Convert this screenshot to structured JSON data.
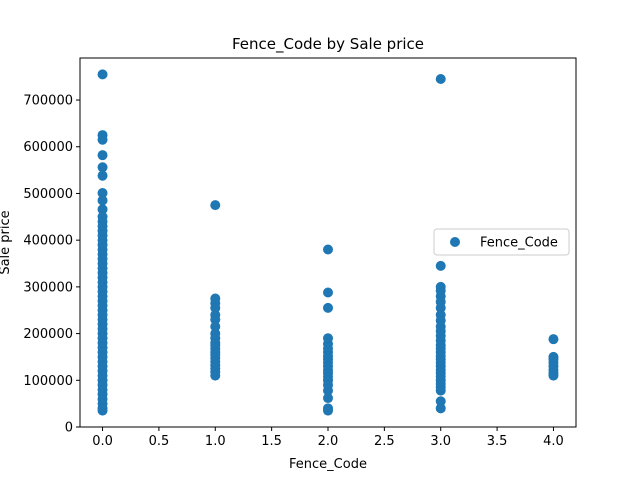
{
  "chart_data": {
    "type": "scatter",
    "title": "Fence_Code by Sale price",
    "xlabel": "Fence_Code",
    "ylabel": "Sale price",
    "xlim": [
      -0.2,
      4.2
    ],
    "ylim": [
      0,
      790000
    ],
    "x_ticks": [
      0.0,
      0.5,
      1.0,
      1.5,
      2.0,
      2.5,
      3.0,
      3.5,
      4.0
    ],
    "x_tick_labels": [
      "0.0",
      "0.5",
      "1.0",
      "1.5",
      "2.0",
      "2.5",
      "3.0",
      "3.5",
      "4.0"
    ],
    "y_ticks": [
      0,
      100000,
      200000,
      300000,
      400000,
      500000,
      600000,
      700000
    ],
    "y_tick_labels": [
      "0",
      "100000",
      "200000",
      "300000",
      "400000",
      "500000",
      "600000",
      "700000"
    ],
    "grid": false,
    "legend_position": "center-right",
    "series": [
      {
        "name": "Fence_Code",
        "color": "#1f77b4",
        "marker": "circle",
        "points": [
          [
            0,
            755000
          ],
          [
            0,
            625000
          ],
          [
            0,
            615000
          ],
          [
            0,
            582000
          ],
          [
            0,
            556000
          ],
          [
            0,
            538000
          ],
          [
            0,
            501000
          ],
          [
            0,
            485000
          ],
          [
            0,
            466000
          ],
          [
            0,
            450000
          ],
          [
            0,
            440000
          ],
          [
            0,
            430000
          ],
          [
            0,
            420000
          ],
          [
            0,
            410000
          ],
          [
            0,
            400000
          ],
          [
            0,
            390000
          ],
          [
            0,
            380000
          ],
          [
            0,
            370000
          ],
          [
            0,
            360000
          ],
          [
            0,
            350000
          ],
          [
            0,
            340000
          ],
          [
            0,
            330000
          ],
          [
            0,
            320000
          ],
          [
            0,
            310000
          ],
          [
            0,
            300000
          ],
          [
            0,
            290000
          ],
          [
            0,
            280000
          ],
          [
            0,
            270000
          ],
          [
            0,
            260000
          ],
          [
            0,
            250000
          ],
          [
            0,
            240000
          ],
          [
            0,
            230000
          ],
          [
            0,
            220000
          ],
          [
            0,
            210000
          ],
          [
            0,
            200000
          ],
          [
            0,
            190000
          ],
          [
            0,
            180000
          ],
          [
            0,
            170000
          ],
          [
            0,
            160000
          ],
          [
            0,
            150000
          ],
          [
            0,
            140000
          ],
          [
            0,
            130000
          ],
          [
            0,
            120000
          ],
          [
            0,
            110000
          ],
          [
            0,
            100000
          ],
          [
            0,
            90000
          ],
          [
            0,
            80000
          ],
          [
            0,
            70000
          ],
          [
            0,
            60000
          ],
          [
            0,
            50000
          ],
          [
            0,
            40000
          ],
          [
            0,
            35000
          ],
          [
            1,
            475000
          ],
          [
            1,
            275000
          ],
          [
            1,
            265000
          ],
          [
            1,
            255000
          ],
          [
            1,
            240000
          ],
          [
            1,
            230000
          ],
          [
            1,
            215000
          ],
          [
            1,
            200000
          ],
          [
            1,
            190000
          ],
          [
            1,
            180000
          ],
          [
            1,
            175000
          ],
          [
            1,
            168000
          ],
          [
            1,
            160000
          ],
          [
            1,
            155000
          ],
          [
            1,
            148000
          ],
          [
            1,
            140000
          ],
          [
            1,
            132000
          ],
          [
            1,
            125000
          ],
          [
            1,
            118000
          ],
          [
            1,
            110000
          ],
          [
            2,
            380000
          ],
          [
            2,
            288000
          ],
          [
            2,
            255000
          ],
          [
            2,
            190000
          ],
          [
            2,
            178000
          ],
          [
            2,
            168000
          ],
          [
            2,
            160000
          ],
          [
            2,
            152000
          ],
          [
            2,
            145000
          ],
          [
            2,
            138000
          ],
          [
            2,
            130000
          ],
          [
            2,
            122000
          ],
          [
            2,
            115000
          ],
          [
            2,
            108000
          ],
          [
            2,
            100000
          ],
          [
            2,
            90000
          ],
          [
            2,
            78000
          ],
          [
            2,
            62000
          ],
          [
            2,
            40000
          ],
          [
            2,
            35000
          ],
          [
            3,
            745000
          ],
          [
            3,
            345000
          ],
          [
            3,
            300000
          ],
          [
            3,
            292000
          ],
          [
            3,
            280000
          ],
          [
            3,
            268000
          ],
          [
            3,
            255000
          ],
          [
            3,
            240000
          ],
          [
            3,
            228000
          ],
          [
            3,
            215000
          ],
          [
            3,
            205000
          ],
          [
            3,
            195000
          ],
          [
            3,
            185000
          ],
          [
            3,
            175000
          ],
          [
            3,
            168000
          ],
          [
            3,
            160000
          ],
          [
            3,
            152000
          ],
          [
            3,
            145000
          ],
          [
            3,
            138000
          ],
          [
            3,
            130000
          ],
          [
            3,
            122000
          ],
          [
            3,
            115000
          ],
          [
            3,
            108000
          ],
          [
            3,
            100000
          ],
          [
            3,
            92000
          ],
          [
            3,
            85000
          ],
          [
            3,
            78000
          ],
          [
            3,
            55000
          ],
          [
            3,
            40000
          ],
          [
            4,
            188000
          ],
          [
            4,
            150000
          ],
          [
            4,
            145000
          ],
          [
            4,
            138000
          ],
          [
            4,
            130000
          ],
          [
            4,
            122000
          ],
          [
            4,
            115000
          ],
          [
            4,
            110000
          ]
        ]
      }
    ]
  }
}
